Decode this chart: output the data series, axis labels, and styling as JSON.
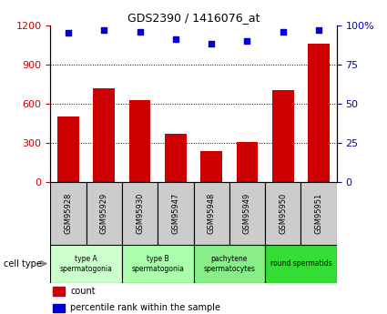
{
  "title": "GDS2390 / 1416076_at",
  "samples": [
    "GSM95928",
    "GSM95929",
    "GSM95930",
    "GSM95947",
    "GSM95948",
    "GSM95949",
    "GSM95950",
    "GSM95951"
  ],
  "counts": [
    500,
    720,
    630,
    370,
    240,
    310,
    700,
    1060
  ],
  "percentiles": [
    95,
    97,
    96,
    91,
    88,
    90,
    96,
    97
  ],
  "ylim_left": [
    0,
    1200
  ],
  "ylim_right": [
    0,
    100
  ],
  "yticks_left": [
    0,
    300,
    600,
    900,
    1200
  ],
  "ytick_labels_right": [
    "0",
    "25",
    "50",
    "75",
    "100%"
  ],
  "yticks_right": [
    0,
    25,
    50,
    75,
    100
  ],
  "bar_color": "#cc0000",
  "dot_color": "#0000cc",
  "grid_color": "#000000",
  "cell_types": [
    {
      "label": "type A\nspermatogonia",
      "span": [
        0,
        2
      ],
      "color": "#ccffcc"
    },
    {
      "label": "type B\nspermatogonia",
      "span": [
        2,
        4
      ],
      "color": "#aaffaa"
    },
    {
      "label": "pachytene\nspermatocytes",
      "span": [
        4,
        6
      ],
      "color": "#88ee88"
    },
    {
      "label": "round spermatids",
      "span": [
        6,
        8
      ],
      "color": "#33dd33"
    }
  ],
  "cell_type_label": "cell type",
  "legend_count_label": "count",
  "legend_percentile_label": "percentile rank within the sample",
  "bg_color": "#ffffff",
  "sample_bg_color": "#cccccc"
}
